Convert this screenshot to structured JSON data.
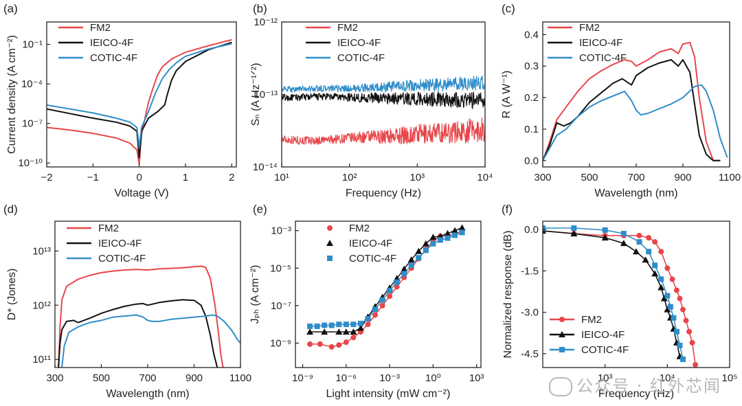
{
  "colors": {
    "fm2": "#e8464a",
    "ieico": "#111111",
    "cotic": "#2f8dc9"
  },
  "legend": [
    "FM2",
    "IEICO-4F",
    "COTIC-4F"
  ],
  "watermark": "公众号 · 红外芯闻",
  "chart_data": [
    {
      "panel": "(a)",
      "type": "line",
      "xlabel": "Voltage (V)",
      "ylabel": "Current density (A cm⁻²)",
      "xlim": [
        -2,
        2.1
      ],
      "ylim_log10": [
        -10.3,
        0.7
      ],
      "yscale": "log",
      "xticks": [
        -2,
        -1,
        0,
        1,
        2
      ],
      "xtick_labels": [
        "−2",
        "−1",
        "0",
        "1",
        "2"
      ],
      "yticks_log10": [
        -1,
        -4,
        -7,
        -10
      ],
      "series": [
        {
          "name": "FM2",
          "x": [
            -2,
            -1.5,
            -1,
            -0.5,
            -0.2,
            -0.05,
            0,
            0.05,
            0.2,
            0.3,
            0.4,
            0.5,
            0.7,
            1.0,
            1.5,
            2.0
          ],
          "log10y": [
            -7.3,
            -7.5,
            -7.75,
            -8.1,
            -8.5,
            -9.0,
            -10.1,
            -7.8,
            -5.4,
            -4.3,
            -3.3,
            -2.7,
            -2.1,
            -1.6,
            -1.1,
            -0.65
          ]
        },
        {
          "name": "IEICO-4F",
          "x": [
            -2,
            -1.5,
            -1,
            -0.5,
            -0.2,
            -0.05,
            0,
            0.05,
            0.2,
            0.4,
            0.55,
            0.6,
            0.7,
            0.8,
            1.0,
            1.5,
            2.0
          ],
          "log10y": [
            -5.9,
            -6.25,
            -6.6,
            -6.9,
            -7.2,
            -7.6,
            -9.6,
            -7.6,
            -6.6,
            -6.1,
            -5.6,
            -4.9,
            -3.7,
            -3.0,
            -2.3,
            -1.4,
            -0.85
          ]
        },
        {
          "name": "COTIC-4F",
          "x": [
            -2,
            -1.5,
            -1,
            -0.5,
            -0.2,
            -0.05,
            0,
            0.05,
            0.2,
            0.35,
            0.5,
            0.65,
            0.8,
            1.0,
            1.5,
            2.0
          ],
          "log10y": [
            -5.6,
            -5.9,
            -6.2,
            -6.6,
            -6.9,
            -7.3,
            -8.8,
            -7.3,
            -6.1,
            -4.7,
            -3.6,
            -2.9,
            -2.4,
            -1.9,
            -1.35,
            -0.95
          ]
        }
      ]
    },
    {
      "panel": "(b)",
      "type": "line",
      "xlabel": "Frequency (Hz)",
      "ylabel": "Sₙ (A Hz⁻¹ᐟ²)",
      "xlim_log10": [
        1,
        4
      ],
      "ylim_log10": [
        -14,
        -12
      ],
      "xscale": "log",
      "yscale": "log",
      "xticks_log10": [
        1,
        2,
        3,
        4
      ],
      "yticks_log10": [
        -14,
        -13,
        -12
      ],
      "series": [
        {
          "name": "FM2",
          "log10x": [
            1,
            1.5,
            2,
            2.5,
            3,
            3.5,
            4
          ],
          "log10y_mean": [
            -13.62,
            -13.64,
            -13.6,
            -13.58,
            -13.55,
            -13.52,
            -13.48
          ],
          "noise": [
            0.06,
            0.06,
            0.07,
            0.1,
            0.14,
            0.16,
            0.18
          ]
        },
        {
          "name": "IEICO-4F",
          "log10x": [
            1,
            1.5,
            2,
            2.5,
            3,
            3.5,
            4
          ],
          "log10y_mean": [
            -13.05,
            -13.03,
            -13.04,
            -13.05,
            -13.06,
            -13.07,
            -13.08
          ],
          "noise": [
            0.05,
            0.05,
            0.06,
            0.08,
            0.1,
            0.11,
            0.12
          ]
        },
        {
          "name": "COTIC-4F",
          "log10x": [
            1,
            1.5,
            2,
            2.5,
            3,
            3.5,
            4
          ],
          "log10y_mean": [
            -12.93,
            -12.92,
            -12.92,
            -12.9,
            -12.88,
            -12.86,
            -12.84
          ],
          "noise": [
            0.04,
            0.04,
            0.05,
            0.07,
            0.09,
            0.1,
            0.11
          ]
        }
      ]
    },
    {
      "panel": "(c)",
      "type": "line",
      "xlabel": "Wavelength (nm)",
      "ylabel": "R (A W⁻¹)",
      "xlim": [
        300,
        1100
      ],
      "ylim": [
        -0.02,
        0.44
      ],
      "xticks": [
        300,
        500,
        700,
        900,
        1100
      ],
      "yticks": [
        0.0,
        0.1,
        0.2,
        0.3,
        0.4
      ],
      "ytick_labels": [
        "0.0",
        "0.1",
        "0.2",
        "0.3",
        "0.4"
      ],
      "series": [
        {
          "name": "FM2",
          "x": [
            300,
            330,
            360,
            400,
            450,
            500,
            550,
            600,
            650,
            680,
            700,
            750,
            800,
            850,
            880,
            900,
            930,
            950,
            970,
            1000,
            1030,
            1060
          ],
          "y": [
            0.0,
            0.06,
            0.13,
            0.17,
            0.22,
            0.26,
            0.285,
            0.305,
            0.32,
            0.315,
            0.3,
            0.32,
            0.345,
            0.355,
            0.34,
            0.37,
            0.375,
            0.33,
            0.2,
            0.06,
            0.0,
            0.0
          ]
        },
        {
          "name": "IEICO-4F",
          "x": [
            300,
            330,
            360,
            390,
            420,
            450,
            500,
            550,
            600,
            640,
            680,
            700,
            750,
            800,
            850,
            880,
            900,
            930,
            950,
            970,
            1000,
            1030,
            1060
          ],
          "y": [
            0.0,
            0.05,
            0.12,
            0.11,
            0.12,
            0.14,
            0.185,
            0.215,
            0.245,
            0.26,
            0.24,
            0.27,
            0.295,
            0.31,
            0.32,
            0.3,
            0.32,
            0.28,
            0.18,
            0.08,
            0.02,
            0.0,
            0.0
          ]
        },
        {
          "name": "COTIC-4F",
          "x": [
            300,
            330,
            360,
            400,
            450,
            500,
            550,
            600,
            650,
            680,
            700,
            720,
            750,
            800,
            850,
            900,
            950,
            980,
            1000,
            1030,
            1060,
            1090
          ],
          "y": [
            0.0,
            0.04,
            0.08,
            0.1,
            0.14,
            0.17,
            0.19,
            0.205,
            0.22,
            0.19,
            0.16,
            0.145,
            0.15,
            0.165,
            0.18,
            0.2,
            0.235,
            0.24,
            0.22,
            0.16,
            0.07,
            0.01
          ]
        }
      ]
    },
    {
      "panel": "(d)",
      "type": "line",
      "xlabel": "Wavelength (nm)",
      "ylabel": "D* (Jones)",
      "xlim": [
        300,
        1100
      ],
      "ylim_log10": [
        10.85,
        13.55
      ],
      "yscale": "log",
      "xticks": [
        300,
        500,
        700,
        900,
        1100
      ],
      "yticks_log10": [
        11,
        12,
        13
      ],
      "series": [
        {
          "name": "FM2",
          "x": [
            315,
            322,
            330,
            350,
            400,
            450,
            500,
            550,
            600,
            650,
            700,
            750,
            800,
            850,
            900,
            930,
            950,
            970,
            990,
            1005,
            1015,
            1025
          ],
          "log10y": [
            10.85,
            11.6,
            12.1,
            12.35,
            12.48,
            12.55,
            12.6,
            12.63,
            12.65,
            12.66,
            12.65,
            12.67,
            12.68,
            12.69,
            12.71,
            12.72,
            12.7,
            12.5,
            12.0,
            11.5,
            11.1,
            10.85
          ]
        },
        {
          "name": "IEICO-4F",
          "x": [
            315,
            322,
            330,
            350,
            380,
            400,
            450,
            500,
            550,
            600,
            650,
            680,
            700,
            750,
            800,
            850,
            900,
            930,
            950,
            970,
            985,
            1000
          ],
          "log10y": [
            10.85,
            11.3,
            11.55,
            11.7,
            11.72,
            11.68,
            11.76,
            11.85,
            11.92,
            11.98,
            12.02,
            12.03,
            12.0,
            12.05,
            12.08,
            12.1,
            12.09,
            12.0,
            11.8,
            11.45,
            11.1,
            10.85
          ]
        },
        {
          "name": "COTIC-4F",
          "x": [
            330,
            340,
            360,
            400,
            450,
            500,
            550,
            600,
            650,
            680,
            700,
            720,
            750,
            800,
            850,
            900,
            950,
            980,
            1000,
            1030,
            1060,
            1090,
            1100
          ],
          "log10y": [
            10.85,
            11.25,
            11.5,
            11.6,
            11.68,
            11.72,
            11.78,
            11.8,
            11.82,
            11.78,
            11.72,
            11.7,
            11.7,
            11.74,
            11.76,
            11.78,
            11.8,
            11.82,
            11.8,
            11.7,
            11.55,
            11.35,
            11.3
          ]
        }
      ]
    },
    {
      "panel": "(e)",
      "type": "scatter",
      "xlabel": "Light intensity (mW cm⁻²)",
      "ylabel": "Jₚₕ (A cm⁻²)",
      "xlim_log10": [
        -9.5,
        3.3
      ],
      "ylim_log10": [
        -10.3,
        -2.5
      ],
      "xscale": "log",
      "yscale": "log",
      "xticks_log10": [
        -9,
        -6,
        -3,
        0,
        3
      ],
      "yticks_log10": [
        -9,
        -7,
        -5,
        -3
      ],
      "series": [
        {
          "name": "FM2",
          "marker": "circle",
          "log10x": [
            -8.5,
            -7.8,
            -7.0,
            -6.5,
            -6.0,
            -5.5,
            -5.0,
            -4.5,
            -4.0,
            -3.5,
            -3.0,
            -2.5,
            -2.0,
            -1.5,
            -1.0,
            -0.5,
            0.0,
            0.5,
            1.0,
            1.5,
            2.0
          ],
          "log10y": [
            -9.05,
            -9.05,
            -9.2,
            -9.1,
            -8.95,
            -8.7,
            -8.4,
            -8.0,
            -7.5,
            -7.0,
            -6.5,
            -6.0,
            -5.5,
            -5.0,
            -4.5,
            -4.0,
            -3.55,
            -3.3,
            -3.3,
            -3.15,
            -3.05
          ]
        },
        {
          "name": "IEICO-4F",
          "marker": "triangle",
          "log10x": [
            -8.5,
            -7.5,
            -6.5,
            -6.0,
            -5.5,
            -5.0,
            -4.5,
            -4.0,
            -3.5,
            -3.0,
            -2.5,
            -2.0,
            -1.5,
            -1.0,
            -0.5,
            0.0,
            0.5,
            1.0,
            1.5,
            2.0
          ],
          "log10y": [
            -8.4,
            -8.4,
            -8.4,
            -8.4,
            -8.4,
            -8.2,
            -7.6,
            -7.05,
            -6.55,
            -6.05,
            -5.55,
            -5.05,
            -4.55,
            -4.1,
            -3.7,
            -3.35,
            -3.3,
            -3.15,
            -3.0,
            -2.85
          ]
        },
        {
          "name": "COTIC-4F",
          "marker": "square",
          "log10x": [
            -8.5,
            -8.0,
            -7.5,
            -7.0,
            -6.5,
            -6.0,
            -5.5,
            -5.0,
            -4.5,
            -4.0,
            -3.5,
            -3.0,
            -2.5,
            -2.0,
            -1.5,
            -1.0,
            -0.5,
            0.0,
            0.5,
            1.0,
            1.5,
            2.0
          ],
          "log10y": [
            -8.1,
            -8.1,
            -8.05,
            -8.05,
            -8.0,
            -8.0,
            -8.0,
            -7.95,
            -7.7,
            -7.2,
            -6.7,
            -6.2,
            -5.75,
            -5.3,
            -4.85,
            -4.45,
            -4.05,
            -3.7,
            -3.5,
            -3.4,
            -3.25,
            -3.1
          ]
        }
      ]
    },
    {
      "panel": "(f)",
      "type": "line",
      "xlabel": "Frequency (Hz)",
      "ylabel": "Normalized response (dB)",
      "xlim_log10": [
        2,
        5
      ],
      "ylim": [
        -5.0,
        0.3
      ],
      "xscale": "log",
      "xticks_log10": [
        3,
        4,
        5
      ],
      "yticks": [
        0.0,
        -1.5,
        -3.0,
        -4.5
      ],
      "ytick_labels": [
        "0.0",
        "-1.5",
        "-3.0",
        "-4.5"
      ],
      "series": [
        {
          "name": "FM2",
          "marker": "circle",
          "log10x": [
            2.0,
            2.5,
            3.0,
            3.3,
            3.55,
            3.7,
            3.8,
            3.9,
            4.0,
            4.08,
            4.15,
            4.2,
            4.25,
            4.3,
            4.35,
            4.4,
            4.45
          ],
          "y": [
            -0.05,
            -0.15,
            -0.22,
            -0.22,
            -0.22,
            -0.3,
            -0.45,
            -0.8,
            -1.4,
            -1.8,
            -2.2,
            -2.5,
            -2.9,
            -3.3,
            -3.7,
            -4.1,
            -4.9
          ]
        },
        {
          "name": "IEICO-4F",
          "marker": "triangle",
          "log10x": [
            2.0,
            2.5,
            3.0,
            3.3,
            3.5,
            3.65,
            3.8,
            3.9,
            3.95,
            4.0,
            4.05,
            4.1,
            4.15,
            4.2
          ],
          "y": [
            -0.05,
            -0.15,
            -0.3,
            -0.5,
            -0.8,
            -1.1,
            -1.6,
            -2.1,
            -2.5,
            -2.9,
            -3.2,
            -3.6,
            -4.1,
            -4.6
          ]
        },
        {
          "name": "COTIC-4F",
          "marker": "square",
          "log10x": [
            2.0,
            2.5,
            3.0,
            3.3,
            3.55,
            3.7,
            3.8,
            3.9,
            4.0,
            4.05,
            4.1,
            4.15,
            4.2,
            4.25
          ],
          "y": [
            0.05,
            0.05,
            -0.02,
            -0.15,
            -0.45,
            -0.8,
            -1.3,
            -1.8,
            -2.4,
            -2.8,
            -3.2,
            -3.7,
            -4.2,
            -4.7
          ]
        }
      ]
    }
  ]
}
